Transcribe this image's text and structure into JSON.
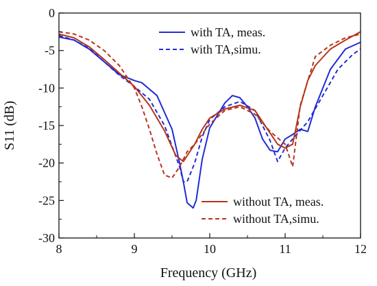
{
  "colors": {
    "with_ta": "#1f2bd6",
    "without_ta": "#b5341a",
    "axis": "#111111"
  },
  "chart_data": {
    "type": "line",
    "xlabel": "Frequency (GHz)",
    "ylabel": "S11 (dB)",
    "xlim": [
      8,
      12
    ],
    "ylim": [
      -30,
      0
    ],
    "xticks": [
      "8",
      "9",
      "10",
      "11",
      "12"
    ],
    "yticks": [
      "0",
      "-5",
      "-10",
      "-15",
      "-20",
      "-25",
      "-30"
    ],
    "grid": false,
    "legends": [
      {
        "placement": "top-right",
        "entries": [
          "with TA, meas.",
          "with TA,simu."
        ]
      },
      {
        "placement": "bottom-right",
        "entries": [
          "without TA,  meas.",
          "without TA,simu."
        ]
      }
    ],
    "series": [
      {
        "name": "with TA, meas.",
        "color": "#1f2bd6",
        "dash": "solid",
        "x": [
          8.0,
          8.2,
          8.4,
          8.6,
          8.8,
          9.0,
          9.1,
          9.3,
          9.5,
          9.6,
          9.65,
          9.7,
          9.78,
          9.82,
          9.9,
          10.0,
          10.2,
          10.3,
          10.4,
          10.5,
          10.6,
          10.7,
          10.8,
          10.9,
          11.0,
          11.1,
          11.2,
          11.3,
          11.4,
          11.6,
          11.8,
          12.0
        ],
        "y": [
          -3.2,
          -3.6,
          -4.8,
          -6.5,
          -8.2,
          -9.0,
          -9.3,
          -11.0,
          -15.5,
          -20.0,
          -22.5,
          -25.3,
          -26.0,
          -25.0,
          -19.5,
          -15.3,
          -12.0,
          -11.0,
          -11.3,
          -12.5,
          -14.0,
          -16.8,
          -18.3,
          -18.5,
          -16.8,
          -16.2,
          -15.5,
          -15.8,
          -12.5,
          -7.5,
          -4.8,
          -3.9
        ]
      },
      {
        "name": "with TA,simu.",
        "color": "#1f2bd6",
        "dash": "dashed",
        "x": [
          8.0,
          8.2,
          8.4,
          8.6,
          8.8,
          9.0,
          9.2,
          9.4,
          9.6,
          9.65,
          9.7,
          9.8,
          9.9,
          10.0,
          10.2,
          10.4,
          10.6,
          10.8,
          10.9,
          11.0,
          11.1,
          11.3,
          11.5,
          11.7,
          11.9,
          12.0
        ],
        "y": [
          -3.0,
          -3.6,
          -4.7,
          -6.5,
          -8.3,
          -9.8,
          -11.5,
          -15.0,
          -20.5,
          -22.5,
          -22.5,
          -20.0,
          -16.5,
          -14.2,
          -12.5,
          -11.8,
          -13.0,
          -17.0,
          -19.8,
          -18.0,
          -16.8,
          -14.5,
          -11.0,
          -7.5,
          -5.5,
          -4.8
        ]
      },
      {
        "name": "without TA,  meas.",
        "color": "#b5341a",
        "dash": "solid",
        "x": [
          8.0,
          8.2,
          8.4,
          8.6,
          8.8,
          9.0,
          9.2,
          9.4,
          9.55,
          9.65,
          9.8,
          9.9,
          10.0,
          10.2,
          10.4,
          10.6,
          10.8,
          10.9,
          11.0,
          11.1,
          11.2,
          11.3,
          11.4,
          11.6,
          11.8,
          12.0
        ],
        "y": [
          -2.8,
          -3.3,
          -4.5,
          -6.2,
          -8.0,
          -9.8,
          -12.3,
          -15.7,
          -19.0,
          -19.8,
          -17.5,
          -15.5,
          -14.0,
          -12.8,
          -12.3,
          -13.0,
          -16.0,
          -17.5,
          -18.0,
          -17.5,
          -12.5,
          -9.0,
          -7.0,
          -4.8,
          -3.6,
          -2.5
        ]
      },
      {
        "name": "without TA,simu.",
        "color": "#b5341a",
        "dash": "dashed",
        "x": [
          8.0,
          8.2,
          8.4,
          8.6,
          8.8,
          9.0,
          9.1,
          9.2,
          9.3,
          9.4,
          9.5,
          9.6,
          9.7,
          9.8,
          10.0,
          10.2,
          10.4,
          10.6,
          10.8,
          11.0,
          11.05,
          11.1,
          11.2,
          11.4,
          11.6,
          11.8,
          12.0
        ],
        "y": [
          -2.5,
          -2.8,
          -3.6,
          -5.0,
          -7.0,
          -10.0,
          -12.5,
          -15.5,
          -18.8,
          -21.6,
          -22.0,
          -20.5,
          -18.5,
          -17.5,
          -14.8,
          -13.0,
          -12.5,
          -13.5,
          -15.8,
          -17.5,
          -19.0,
          -20.5,
          -12.3,
          -5.8,
          -4.3,
          -3.3,
          -2.8
        ]
      }
    ]
  }
}
